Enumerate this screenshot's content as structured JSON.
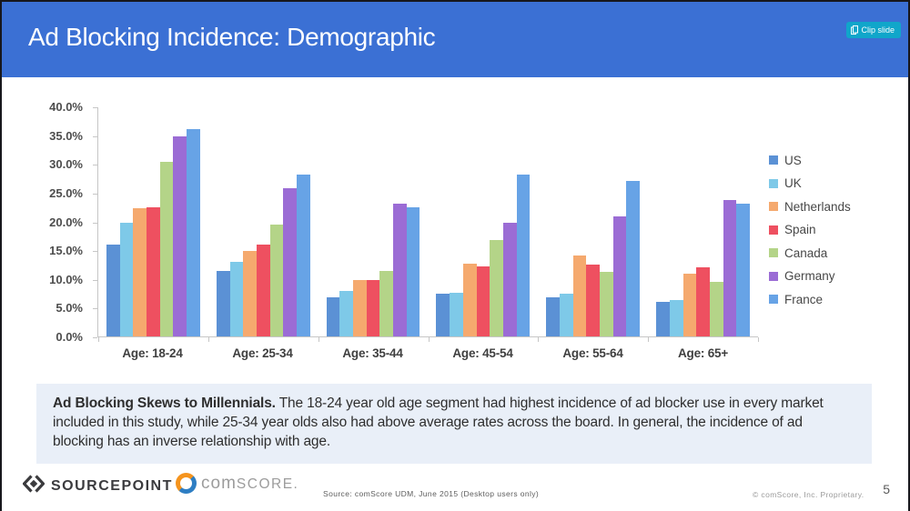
{
  "header": {
    "title": "Ad Blocking Incidence: Demographic",
    "clip_button_label": "Clip slide"
  },
  "colors": {
    "header_bg": "#3B70D4",
    "clip_button_bg": "#10A6CA",
    "callout_bg": "#E9EFF8",
    "axis": "#C6C6C6",
    "sourcepoint_dark": "#3B3B3E",
    "comscore_gray": "#9C9C9C",
    "comscore_orange": "#F5941E",
    "comscore_blue": "#2E7EC3"
  },
  "chart_data": {
    "type": "bar",
    "title": "",
    "xlabel": "",
    "ylabel": "",
    "categories": [
      "Age: 18-24",
      "Age: 25-34",
      "Age: 35-44",
      "Age: 45-54",
      "Age: 55-64",
      "Age: 65+"
    ],
    "series": [
      {
        "name": "US",
        "color": "#5B91D5",
        "values": [
          16.0,
          11.5,
          6.8,
          7.4,
          6.9,
          6.0
        ]
      },
      {
        "name": "UK",
        "color": "#7EC9E8",
        "values": [
          19.9,
          13.0,
          8.0,
          7.6,
          7.5,
          6.4
        ]
      },
      {
        "name": "Netherlands",
        "color": "#F5A96E",
        "values": [
          22.4,
          15.0,
          9.8,
          12.7,
          14.2,
          10.9
        ]
      },
      {
        "name": "Spain",
        "color": "#EE5060",
        "values": [
          22.6,
          16.1,
          9.8,
          12.3,
          12.6,
          12.0
        ]
      },
      {
        "name": "Canada",
        "color": "#B4D488",
        "values": [
          30.5,
          19.5,
          11.4,
          16.8,
          11.3,
          9.6
        ]
      },
      {
        "name": "Germany",
        "color": "#9B6CD5",
        "values": [
          34.9,
          25.9,
          23.2,
          19.9,
          21.0,
          23.8
        ]
      },
      {
        "name": "France",
        "color": "#67A3E6",
        "values": [
          36.2,
          28.3,
          22.6,
          28.2,
          27.2,
          23.2
        ]
      }
    ],
    "ylim": [
      0,
      40
    ],
    "ytick_labels": [
      "0.0%",
      "5.0%",
      "10.0%",
      "15.0%",
      "20.0%",
      "25.0%",
      "30.0%",
      "35.0%",
      "40.0%"
    ],
    "grid": false,
    "legend_position": "right"
  },
  "callout": {
    "lead": "Ad Blocking Skews to Millennials.",
    "body": " The 18-24 year old age segment had highest incidence of ad blocker use in every market included in this study, while 25-34 year olds also had above average rates across the board. In general, the incidence of ad blocking has an inverse relationship with age."
  },
  "footer": {
    "sourcepoint_label": "SOURCEPOINT",
    "comscore_com": "com",
    "comscore_score": "SCORE.",
    "source_note": "Source: comScore UDM, June 2015 (Desktop users only)",
    "copyright": "© comScore, Inc. Proprietary.",
    "page_number": "5"
  }
}
